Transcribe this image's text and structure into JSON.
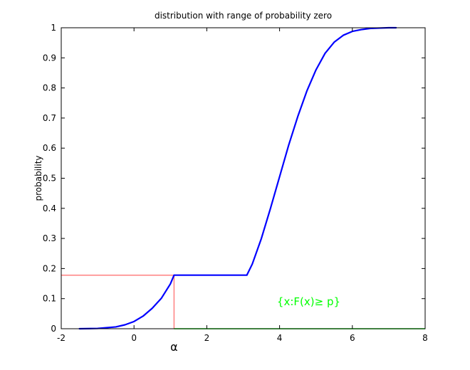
{
  "chart_data": {
    "type": "line",
    "title": "distribution with range of probability zero",
    "xlabel": "",
    "ylabel": "probability",
    "xlim": [
      -2,
      8
    ],
    "ylim": [
      0,
      1
    ],
    "x_ticks": [
      -2,
      0,
      2,
      4,
      6,
      8
    ],
    "y_ticks": [
      0,
      0.1,
      0.2,
      0.3,
      0.4,
      0.5,
      0.6,
      0.7,
      0.8,
      0.9,
      1
    ],
    "grid": false,
    "series": [
      {
        "color": "#0000ff",
        "x": [
          -1.5,
          -1.0,
          -0.5,
          -0.25,
          0.0,
          0.25,
          0.5,
          0.75,
          1.0,
          1.1,
          1.5,
          2.0,
          2.5,
          3.0,
          3.1,
          3.25,
          3.5,
          3.75,
          4.0,
          4.25,
          4.5,
          4.75,
          5.0,
          5.25,
          5.5,
          5.75,
          6.0,
          6.25,
          6.5,
          6.75,
          7.0,
          7.2
        ],
        "y": [
          0.0,
          0.001,
          0.006,
          0.013,
          0.024,
          0.042,
          0.068,
          0.101,
          0.149,
          0.178,
          0.178,
          0.178,
          0.178,
          0.178,
          0.178,
          0.215,
          0.3,
          0.4,
          0.505,
          0.61,
          0.705,
          0.79,
          0.86,
          0.915,
          0.952,
          0.975,
          0.988,
          0.994,
          0.998,
          0.999,
          1.0,
          1.0
        ]
      }
    ],
    "guide_lines": {
      "color": "#ff8080",
      "alpha_x": 1.1,
      "p_level": 0.178
    },
    "set_segment": {
      "color": "#00ff00",
      "x_start": 1.1,
      "x_end": 8,
      "y": 0
    },
    "annotations": {
      "alpha": "α",
      "set_label": "{x:F(x)≥ p}",
      "set_label_color": "#00ff00",
      "set_label_x": 4.8,
      "set_label_y": 0.09
    }
  }
}
